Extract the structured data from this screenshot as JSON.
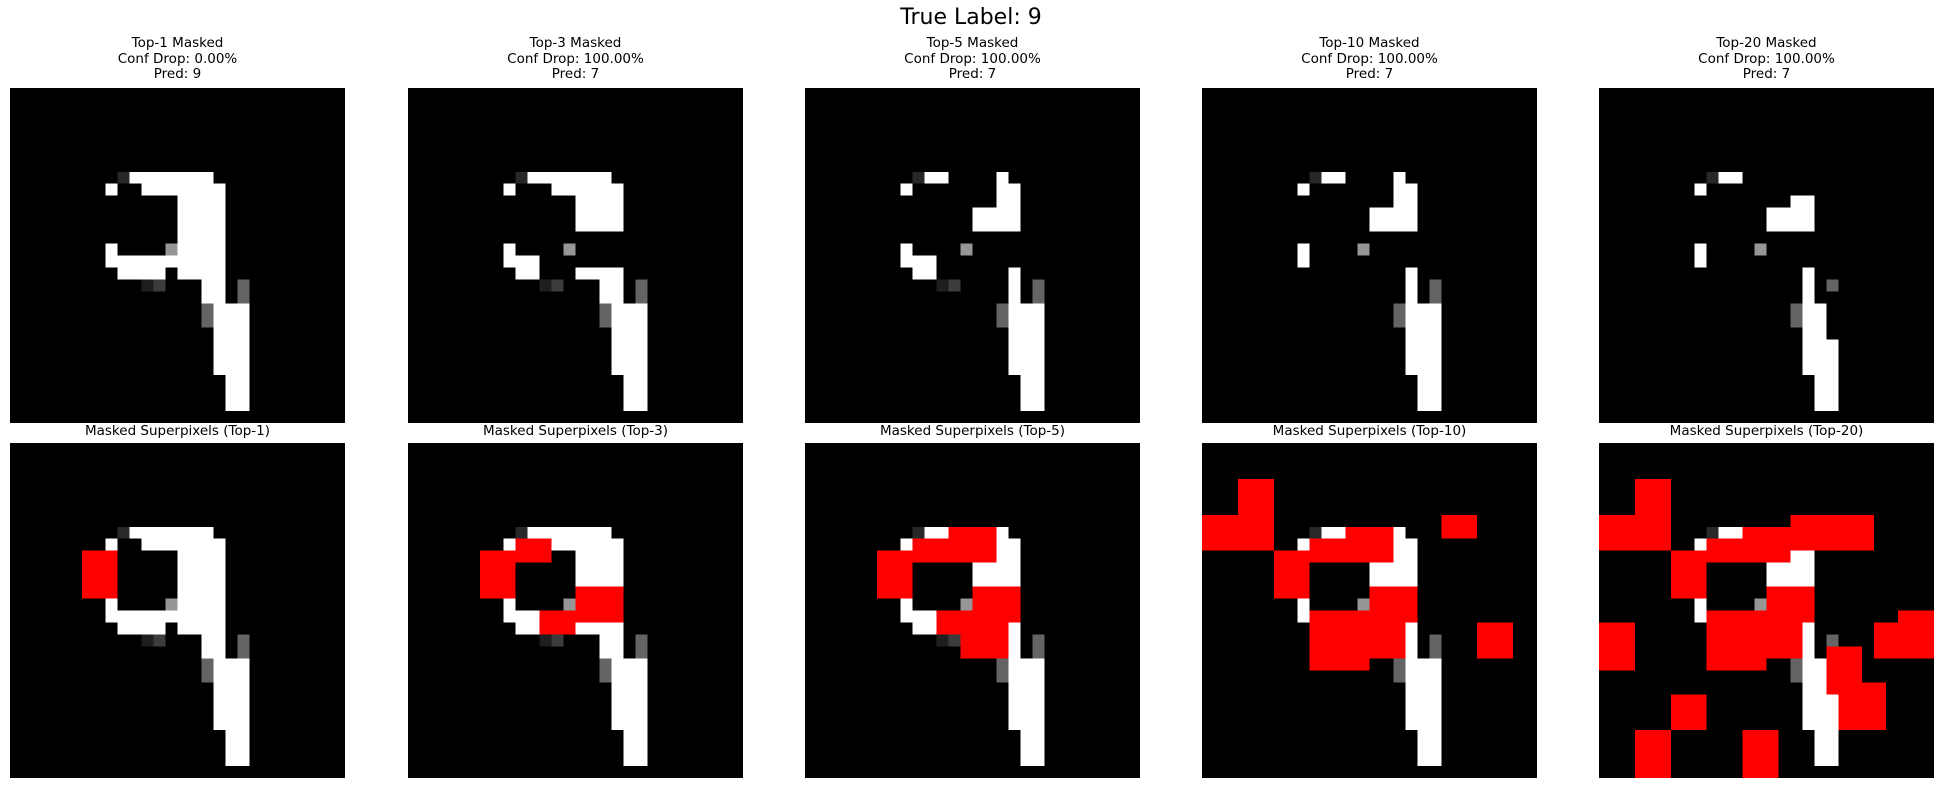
{
  "figure": {
    "title": "True Label: 9",
    "colors": {
      "background": "#000000",
      "mask": "#ff0000",
      "stroke": "#ffffff"
    },
    "top_row": [
      {
        "line1": "Top-1 Masked",
        "line2": "Conf Drop: 0.00%",
        "line3": "Pred: 9"
      },
      {
        "line1": "Top-3 Masked",
        "line2": "Conf Drop: 100.00%",
        "line3": "Pred: 7"
      },
      {
        "line1": "Top-5 Masked",
        "line2": "Conf Drop: 100.00%",
        "line3": "Pred: 7"
      },
      {
        "line1": "Top-10 Masked",
        "line2": "Conf Drop: 100.00%",
        "line3": "Pred: 7"
      },
      {
        "line1": "Top-20 Masked",
        "line2": "Conf Drop: 100.00%",
        "line3": "Pred: 7"
      }
    ],
    "bottom_row": [
      {
        "title": "Masked Superpixels (Top-1)"
      },
      {
        "title": "Masked Superpixels (Top-3)"
      },
      {
        "title": "Masked Superpixels (Top-5)"
      },
      {
        "title": "Masked Superpixels (Top-10)"
      },
      {
        "title": "Masked Superpixels (Top-20)"
      }
    ]
  }
}
